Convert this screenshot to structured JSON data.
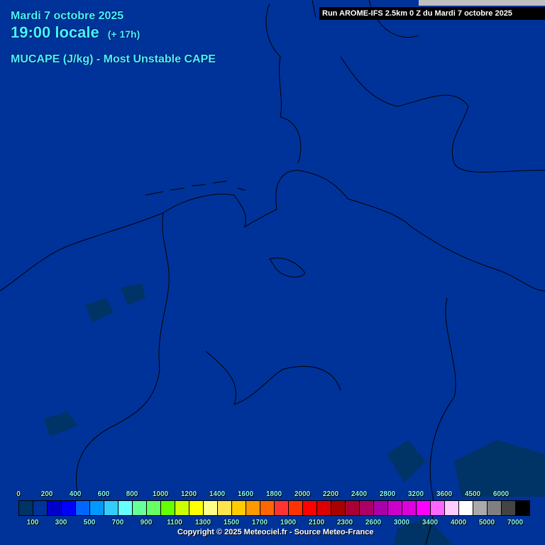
{
  "header": {
    "date": "Mardi 7 octobre 2025",
    "time": "19:00 locale",
    "lead": "(+ 17h)",
    "parameter": "MUCAPE (J/kg) - Most Unstable CAPE",
    "run": "Run AROME-IFS 2.5km 0 Z du Mardi 7 octobre 2025"
  },
  "map": {
    "background_color": "#003399",
    "low_value_color": "#003366"
  },
  "legend": {
    "colors": [
      "#003366",
      "#003399",
      "#0000cc",
      "#0000ff",
      "#0066ff",
      "#0099ff",
      "#33ccff",
      "#66ffff",
      "#66ff99",
      "#66ff66",
      "#66ff00",
      "#ccff00",
      "#ffff00",
      "#ffff88",
      "#ffe44d",
      "#ffcc00",
      "#ff9900",
      "#ff6600",
      "#ff3333",
      "#ff3300",
      "#ff0000",
      "#dd0000",
      "#aa0000",
      "#aa0033",
      "#aa0066",
      "#aa00aa",
      "#cc00cc",
      "#dd00dd",
      "#ff00ff",
      "#ff66ff",
      "#ffccff",
      "#ffffff",
      "#aaaaaa",
      "#808080",
      "#444444",
      "#000000"
    ],
    "top_labels": [
      "0",
      "200",
      "400",
      "600",
      "800",
      "1000",
      "1200",
      "1400",
      "1600",
      "1800",
      "2000",
      "2200",
      "2400",
      "2800",
      "3200",
      "3600",
      "4500",
      "6000"
    ],
    "bottom_labels": [
      "100",
      "300",
      "500",
      "700",
      "900",
      "1100",
      "1300",
      "1500",
      "1700",
      "1900",
      "2100",
      "2300",
      "2600",
      "3000",
      "3400",
      "4000",
      "5000",
      "7000"
    ]
  },
  "footer": {
    "copyright": "Copyright © 2025 Meteociel.fr - Source Meteo-France"
  }
}
